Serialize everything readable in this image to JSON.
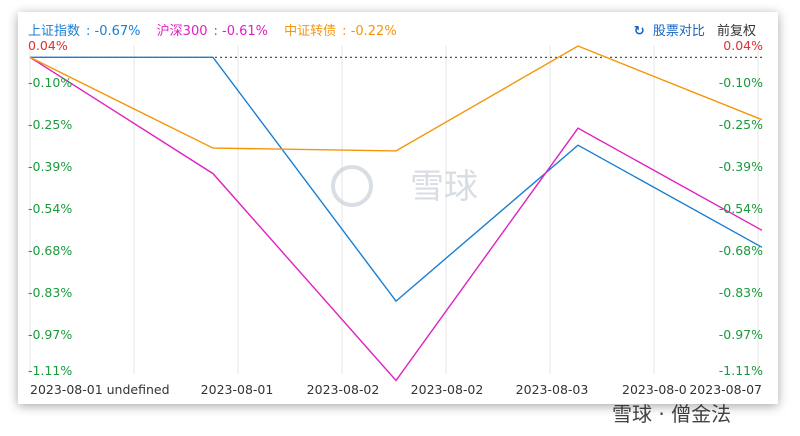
{
  "legend": [
    {
      "name": "上证指数",
      "value": "-0.67%",
      "color": "#1a7fd4"
    },
    {
      "name": "沪深300",
      "value": "-0.61%",
      "color": "#e020c0"
    },
    {
      "name": "中证转债",
      "value": "-0.22%",
      "color": "#f5960a"
    }
  ],
  "controls": {
    "compare_label": "股票对比",
    "adjust_label": "前复权",
    "refresh_icon": "refresh-icon"
  },
  "watermark": {
    "center": "雪球",
    "bottom": "雪球 · 僧金法"
  },
  "colors": {
    "positive": "#e03030",
    "negative": "#1a9a3c",
    "grid": "#e6e6e6",
    "baseline": "#555555"
  },
  "chart_data": {
    "type": "line",
    "x": [
      "2023-08-01 undefined",
      "2023-08-01",
      "2023-08-02",
      "2023-08-02",
      "2023-08-03",
      "2023-08-0",
      "2023-08-07"
    ],
    "x_tick_labels": [
      "2023-08-01 undefined",
      "2023-08-01",
      "2023-08-02",
      "2023-08-02",
      "2023-08-03",
      "2023-08-0",
      "2023-08-07"
    ],
    "y_tick_labels": [
      "0.04%",
      "-0.10%",
      "-0.25%",
      "-0.39%",
      "-0.54%",
      "-0.68%",
      "-0.83%",
      "-0.97%",
      "-1.11%"
    ],
    "ylim": [
      -1.11,
      0.04
    ],
    "baseline": 0.0,
    "series": [
      {
        "name": "上证指数",
        "color": "#1a7fd4",
        "points": [
          [
            0,
            0.0
          ],
          [
            1,
            0.0
          ],
          [
            2,
            -0.86
          ],
          [
            4,
            -0.31
          ],
          [
            6,
            -0.67
          ]
        ]
      },
      {
        "name": "沪深300",
        "color": "#e020c0",
        "points": [
          [
            0,
            0.0
          ],
          [
            1,
            -0.41
          ],
          [
            2,
            -1.14
          ],
          [
            4,
            -0.25
          ],
          [
            6,
            -0.61
          ]
        ]
      },
      {
        "name": "中证转债",
        "color": "#f5960a",
        "points": [
          [
            0,
            0.0
          ],
          [
            1,
            -0.32
          ],
          [
            2,
            -0.33
          ],
          [
            4,
            0.04
          ],
          [
            6,
            -0.22
          ]
        ]
      }
    ]
  }
}
